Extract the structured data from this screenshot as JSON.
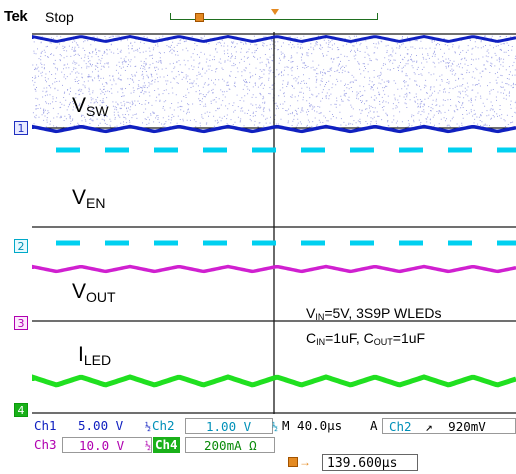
{
  "header": {
    "brand": "Tek",
    "state": "Stop"
  },
  "screen": {
    "channel_markers": [
      "1",
      "2",
      "3",
      "4"
    ],
    "labels": {
      "vsw": {
        "main": "V",
        "sub": "SW"
      },
      "ven": {
        "main": "V",
        "sub": "EN"
      },
      "vout": {
        "main": "V",
        "sub": "OUT"
      },
      "iled": {
        "main": "I",
        "sub": "LED"
      }
    },
    "conditions": {
      "line1_a": "V",
      "line1_sub": "IN",
      "line1_b": "=5V, 3S9P WLEDs",
      "line2_a": "C",
      "line2_sub1": "IN",
      "line2_b": "=1uF, C",
      "line2_sub2": "OUT",
      "line2_c": "=1uF"
    },
    "colors": {
      "ch1": "#1020c0",
      "ch2": "#00d0f0",
      "ch3": "#d020d0",
      "ch4": "#20e020",
      "noise": "#8a8fe0"
    }
  },
  "info": {
    "ch1_name": "Ch1",
    "ch1_scale": "5.00 V",
    "ch1_bw": "½",
    "ch2_name": "Ch2",
    "ch2_scale": "1.00 V",
    "ch2_bw": "½",
    "ch3_name": "Ch3",
    "ch3_scale": "10.0 V",
    "ch3_bw": "½",
    "ch4_name": "Ch4",
    "ch4_scale": "200mA Ω",
    "ch4_bw": "½",
    "timebase": "M 40.0µs",
    "trigger_mode": "A",
    "trigger_src": "Ch2",
    "trigger_slope": "↗",
    "trigger_level": "920mV",
    "position": "139.600µs"
  }
}
